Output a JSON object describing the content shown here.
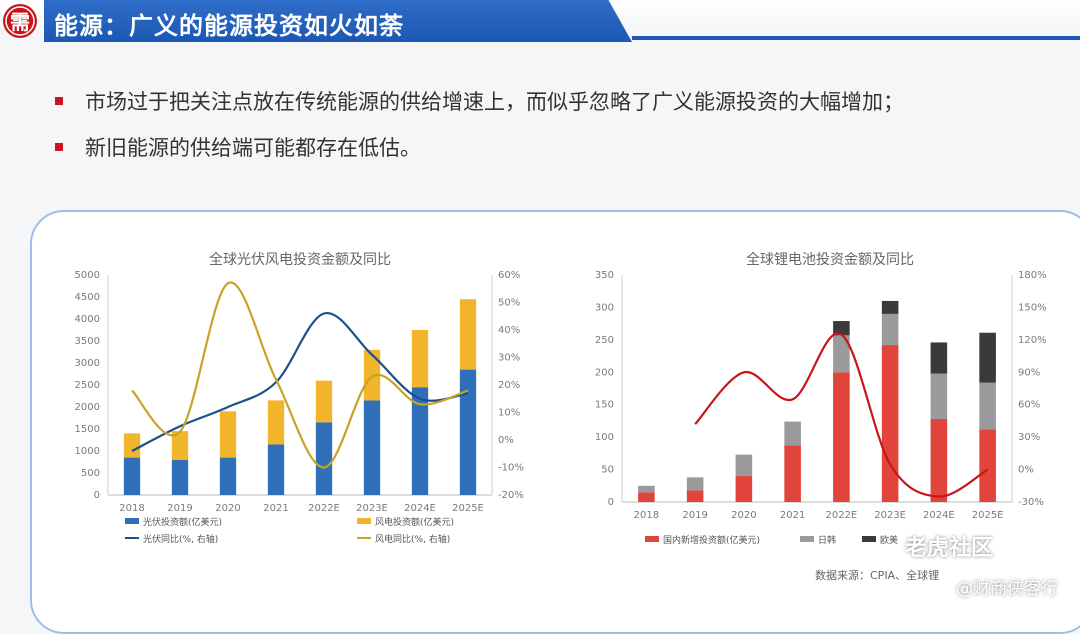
{
  "header": {
    "logo_text": "需",
    "title": "能源：广义的能源投资如火如荼"
  },
  "bullets": [
    "市场过于把关注点放在传统能源的供给增速上，而似乎忽略了广义能源投资的大幅增加；",
    "新旧能源的供给端可能都存在低估。"
  ],
  "source": "数据来源：CPIA、全球锂",
  "watermark": {
    "line1": "老虎社区",
    "line2": "@财商侠客行"
  },
  "colors": {
    "title_bar": "#1b57b4",
    "accent_red": "#c8141b",
    "pv_blue": "#2e6fb7",
    "wind_yellow": "#f0b52a",
    "domestic_red": "#e0443a",
    "jk_gray": "#9a9a9a",
    "eu_dark": "#3a3a3a"
  },
  "chart_data": [
    {
      "type": "bar",
      "title": "全球光伏风电投资金额及同比",
      "categories": [
        "2018",
        "2019",
        "2020",
        "2021",
        "2022E",
        "2023E",
        "2024E",
        "2025E"
      ],
      "left_ticks": [
        "0",
        "500",
        "1000",
        "1500",
        "2000",
        "2500",
        "3000",
        "3500",
        "4000",
        "4500",
        "5000"
      ],
      "right_ticks": [
        "-20%",
        "-10%",
        "0%",
        "10%",
        "20%",
        "30%",
        "40%",
        "50%",
        "60%"
      ],
      "ylim": [
        0,
        5000
      ],
      "y2lim": [
        -20,
        60
      ],
      "stacked": true,
      "series": [
        {
          "name": "光伏投资额(亿美元)",
          "kind": "bar",
          "values": [
            850,
            800,
            850,
            1150,
            1650,
            2150,
            2450,
            2850
          ]
        },
        {
          "name": "风电投资额(亿美元)",
          "kind": "bar",
          "values": [
            550,
            650,
            1050,
            1000,
            950,
            1150,
            1300,
            1600
          ]
        },
        {
          "name": "光伏同比(%, 右轴)",
          "kind": "line",
          "axis": "right",
          "values": [
            -4,
            5,
            12,
            21,
            46,
            31,
            15,
            17
          ]
        },
        {
          "name": "风电同比(%, 右轴)",
          "kind": "line",
          "axis": "right",
          "values": [
            18,
            3,
            57,
            22,
            -10,
            23,
            13,
            18
          ]
        }
      ]
    },
    {
      "type": "bar",
      "title": "全球锂电池投资金额及同比",
      "categories": [
        "2018",
        "2019",
        "2020",
        "2021",
        "2022E",
        "2023E",
        "2024E",
        "2025E"
      ],
      "left_ticks": [
        "0",
        "50",
        "100",
        "150",
        "200",
        "250",
        "300",
        "350"
      ],
      "right_ticks": [
        "-30%",
        "0%",
        "30%",
        "60%",
        "90%",
        "120%",
        "150%",
        "180%"
      ],
      "ylim": [
        0,
        350
      ],
      "y2lim": [
        -30,
        180
      ],
      "stacked": true,
      "series": [
        {
          "name": "国内新增投资额(亿美元)",
          "kind": "bar",
          "values": [
            15,
            18,
            40,
            87,
            200,
            242,
            128,
            112
          ]
        },
        {
          "name": "日韩",
          "kind": "bar",
          "values": [
            10,
            20,
            33,
            37,
            57,
            48,
            70,
            72
          ]
        },
        {
          "name": "欧美",
          "kind": "bar",
          "values": [
            0,
            0,
            0,
            0,
            22,
            20,
            48,
            77
          ]
        },
        {
          "name": "",
          "kind": "line",
          "axis": "right",
          "values": [
            null,
            42,
            90,
            65,
            125,
            5,
            -25,
            0
          ]
        }
      ]
    }
  ]
}
